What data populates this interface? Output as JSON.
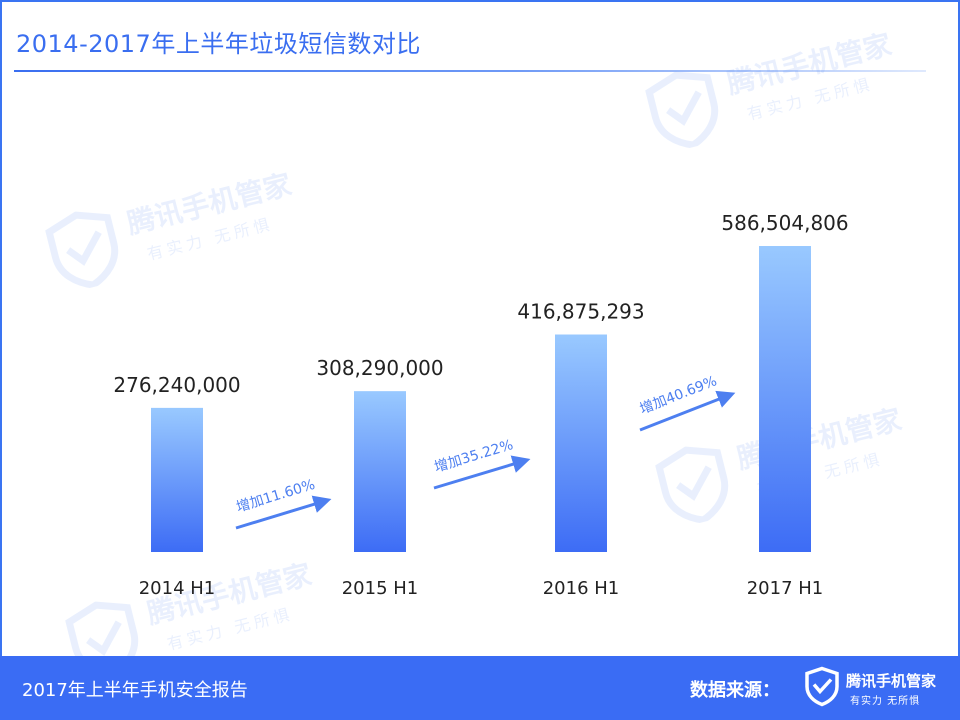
{
  "header": {
    "title": "2014-2017年上半年垃圾短信数对比"
  },
  "watermark": {
    "brand": "腾讯手机管家",
    "slogan": "有实力 无所惧"
  },
  "chart_data": {
    "type": "bar",
    "categories": [
      "2014 H1",
      "2015 H1",
      "2016 H1",
      "2017 H1"
    ],
    "values": [
      276240000,
      308290000,
      416875293,
      586504806
    ],
    "value_labels": [
      "276,240,000",
      "308,290,000",
      "416,875,293",
      "586,504,806"
    ],
    "growth_labels": [
      "增加11.60%",
      "增加35.22%",
      "增加40.69%"
    ],
    "bar_colors": [
      "#99c9ff",
      "#3d6cf5"
    ],
    "arrow_color": "#4d7ff0",
    "grid": false,
    "legend": "none"
  },
  "footer": {
    "report": "2017年上半年手机安全报告",
    "source_label": "数据来源：",
    "brand": "腾讯手机管家",
    "slogan": "有实力  无所惧"
  },
  "colors": {
    "accent": "#3a6cf4",
    "title": "#3a6ef0"
  },
  "icons": {
    "logo": "shield-check-icon"
  }
}
